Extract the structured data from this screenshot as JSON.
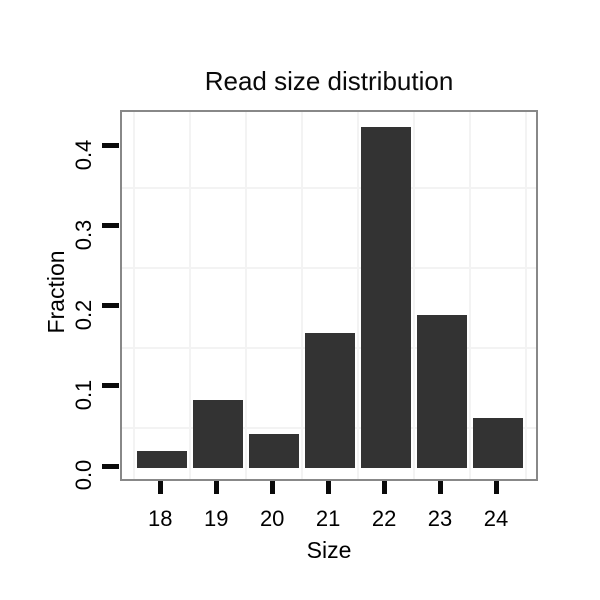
{
  "chart_data": {
    "type": "bar",
    "title": "Read size distribution",
    "xlabel": "Size",
    "ylabel": "Fraction",
    "categories": [
      "18",
      "19",
      "20",
      "21",
      "22",
      "23",
      "24"
    ],
    "values": [
      0.021,
      0.085,
      0.043,
      0.169,
      0.426,
      0.191,
      0.063
    ],
    "ytick_labels": [
      "0.0",
      "0.1",
      "0.2",
      "0.3",
      "0.4"
    ],
    "ytick_values": [
      0.0,
      0.1,
      0.2,
      0.3,
      0.4
    ],
    "ylim": [
      -0.019,
      0.443
    ],
    "grid": "on",
    "grid_style": "offset-half-interval",
    "legend": "none",
    "colors": {
      "bar_fill": "#333333",
      "panel_border": "#888888",
      "gridline": "#f3f3f3",
      "tick_mark": "#0a0a0a",
      "text": "#000000",
      "background": "#ffffff"
    }
  }
}
